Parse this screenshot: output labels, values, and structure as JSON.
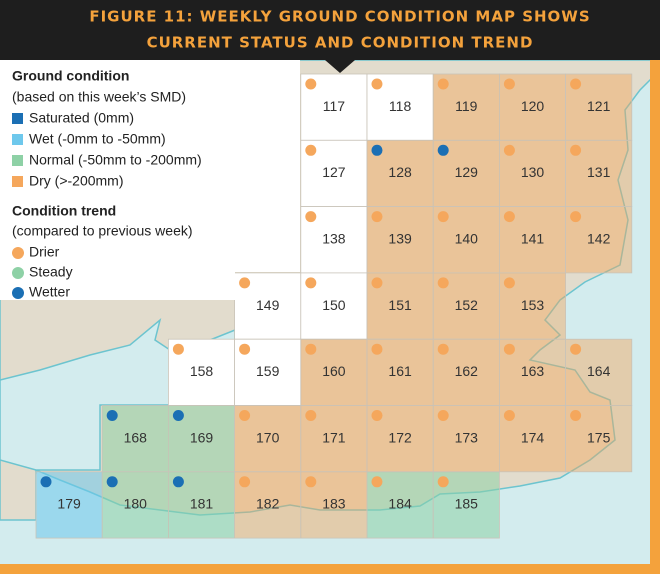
{
  "header": {
    "title_lines": [
      "FIGURE 11: WEEKLY GROUND CONDITION MAP SHOWS",
      "CURRENT STATUS AND CONDITION TREND"
    ]
  },
  "legend": {
    "condition_title": "Ground condition",
    "condition_subtitle": "(based on this week’s SMD)",
    "conditions": [
      {
        "label": "Saturated (0mm)",
        "color": "#1b6fb4"
      },
      {
        "label": "Wet (-0mm to -50mm)",
        "color": "#6ec8ec"
      },
      {
        "label": "Normal (-50mm to -200mm)",
        "color": "#8ed1a6"
      },
      {
        "label": "Dry (>-200mm)",
        "color": "#f5a75c"
      }
    ],
    "trend_title": "Condition trend",
    "trend_subtitle": "(compared to previous week)",
    "trends": [
      {
        "label": "Drier",
        "color": "#f5a75c"
      },
      {
        "label": "Steady",
        "color": "#8ed1a6"
      },
      {
        "label": "Wetter",
        "color": "#1b6fb4"
      }
    ]
  },
  "cells": [
    {
      "label": "117",
      "col": 4,
      "row": 0,
      "condition": null,
      "trend": 0
    },
    {
      "label": "118",
      "col": 5,
      "row": 0,
      "condition": null,
      "trend": 0
    },
    {
      "label": "119",
      "col": 6,
      "row": 0,
      "condition": 3,
      "trend": 0
    },
    {
      "label": "120",
      "col": 7,
      "row": 0,
      "condition": 3,
      "trend": 0
    },
    {
      "label": "121",
      "col": 8,
      "row": 0,
      "condition": 3,
      "trend": 0
    },
    {
      "label": "127",
      "col": 4,
      "row": 1,
      "condition": null,
      "trend": 0
    },
    {
      "label": "128",
      "col": 5,
      "row": 1,
      "condition": 3,
      "trend": 2
    },
    {
      "label": "129",
      "col": 6,
      "row": 1,
      "condition": 3,
      "trend": 2
    },
    {
      "label": "130",
      "col": 7,
      "row": 1,
      "condition": 3,
      "trend": 0
    },
    {
      "label": "131",
      "col": 8,
      "row": 1,
      "condition": 3,
      "trend": 0
    },
    {
      "label": "138",
      "col": 4,
      "row": 2,
      "condition": null,
      "trend": 0
    },
    {
      "label": "139",
      "col": 5,
      "row": 2,
      "condition": 3,
      "trend": 0
    },
    {
      "label": "140",
      "col": 6,
      "row": 2,
      "condition": 3,
      "trend": 0
    },
    {
      "label": "141",
      "col": 7,
      "row": 2,
      "condition": 3,
      "trend": 0
    },
    {
      "label": "142",
      "col": 8,
      "row": 2,
      "condition": 3,
      "trend": 0
    },
    {
      "label": "149",
      "col": 3,
      "row": 3,
      "condition": null,
      "trend": 0
    },
    {
      "label": "150",
      "col": 4,
      "row": 3,
      "condition": null,
      "trend": 0
    },
    {
      "label": "151",
      "col": 5,
      "row": 3,
      "condition": 3,
      "trend": 0
    },
    {
      "label": "152",
      "col": 6,
      "row": 3,
      "condition": 3,
      "trend": 0
    },
    {
      "label": "153",
      "col": 7,
      "row": 3,
      "condition": 3,
      "trend": 0
    },
    {
      "label": "158",
      "col": 2,
      "row": 4,
      "condition": null,
      "trend": 0
    },
    {
      "label": "159",
      "col": 3,
      "row": 4,
      "condition": null,
      "trend": 0
    },
    {
      "label": "160",
      "col": 4,
      "row": 4,
      "condition": 3,
      "trend": 0
    },
    {
      "label": "161",
      "col": 5,
      "row": 4,
      "condition": 3,
      "trend": 0
    },
    {
      "label": "162",
      "col": 6,
      "row": 4,
      "condition": 3,
      "trend": 0
    },
    {
      "label": "163",
      "col": 7,
      "row": 4,
      "condition": 3,
      "trend": 0
    },
    {
      "label": "164",
      "col": 8,
      "row": 4,
      "condition": 3,
      "trend": 0
    },
    {
      "label": "168",
      "col": 1,
      "row": 5,
      "condition": 2,
      "trend": 2
    },
    {
      "label": "169",
      "col": 2,
      "row": 5,
      "condition": 2,
      "trend": 2
    },
    {
      "label": "170",
      "col": 3,
      "row": 5,
      "condition": 3,
      "trend": 0
    },
    {
      "label": "171",
      "col": 4,
      "row": 5,
      "condition": 3,
      "trend": 0
    },
    {
      "label": "172",
      "col": 5,
      "row": 5,
      "condition": 3,
      "trend": 0
    },
    {
      "label": "173",
      "col": 6,
      "row": 5,
      "condition": 3,
      "trend": 0
    },
    {
      "label": "174",
      "col": 7,
      "row": 5,
      "condition": 3,
      "trend": 0
    },
    {
      "label": "175",
      "col": 8,
      "row": 5,
      "condition": 3,
      "trend": 0
    },
    {
      "label": "179",
      "col": 0,
      "row": 6,
      "condition": 1,
      "trend": 2
    },
    {
      "label": "180",
      "col": 1,
      "row": 6,
      "condition": 2,
      "trend": 2
    },
    {
      "label": "181",
      "col": 2,
      "row": 6,
      "condition": 2,
      "trend": 2
    },
    {
      "label": "182",
      "col": 3,
      "row": 6,
      "condition": 3,
      "trend": 0
    },
    {
      "label": "183",
      "col": 4,
      "row": 6,
      "condition": 3,
      "trend": 0
    },
    {
      "label": "184",
      "col": 5,
      "row": 6,
      "condition": 2,
      "trend": 0
    },
    {
      "label": "185",
      "col": 6,
      "row": 6,
      "condition": 2,
      "trend": 0
    }
  ]
}
